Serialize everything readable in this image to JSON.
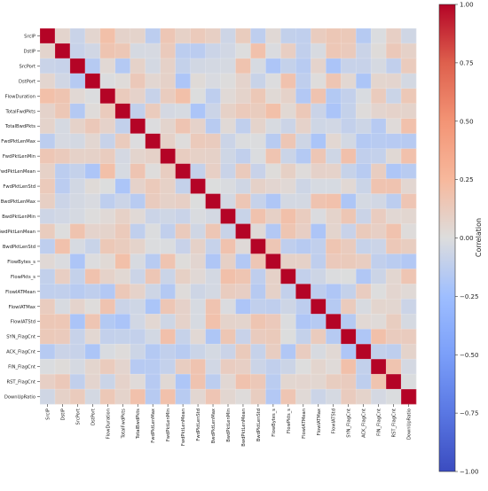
{
  "chart_data": {
    "type": "heatmap",
    "title": "",
    "xlabel": "",
    "ylabel": "",
    "labels": [
      "SrcIP",
      "DstIP",
      "SrcPort",
      "DstPort",
      "FlowDuration",
      "TotalFwdPkts",
      "TotalBwdPkts",
      "FwdPktLenMax",
      "FwdPktLenMin",
      "FwdPktLenMean",
      "FwdPktLenStd",
      "BwdPktLenMax",
      "BwdPktLenMin",
      "BwdPktLenMean",
      "BwdPktLenStd",
      "FlowBytes_s",
      "FlowPkts_s",
      "FlowIATMean",
      "FlowIATMax",
      "FlowIATStd",
      "SYN_FlagCnt",
      "ACK_FlagCnt",
      "FIN_FlagCnt",
      "RST_FlagCnt",
      "DownUpRatio"
    ],
    "diagonal_value": 1.0,
    "off_diagonal_range": [
      -0.2,
      0.2
    ],
    "colorbar": {
      "label": "Correlation",
      "range": [
        -1.0,
        1.0
      ],
      "ticks": [
        -1.0,
        -0.75,
        -0.5,
        -0.25,
        0.0,
        0.25,
        0.5,
        0.75,
        1.0
      ],
      "tick_labels": [
        "−1.00",
        "−0.75",
        "−0.50",
        "−0.25",
        "0.00",
        "0.25",
        "0.50",
        "0.75",
        "1.00"
      ],
      "colormap": "coolwarm"
    },
    "grid": true
  }
}
